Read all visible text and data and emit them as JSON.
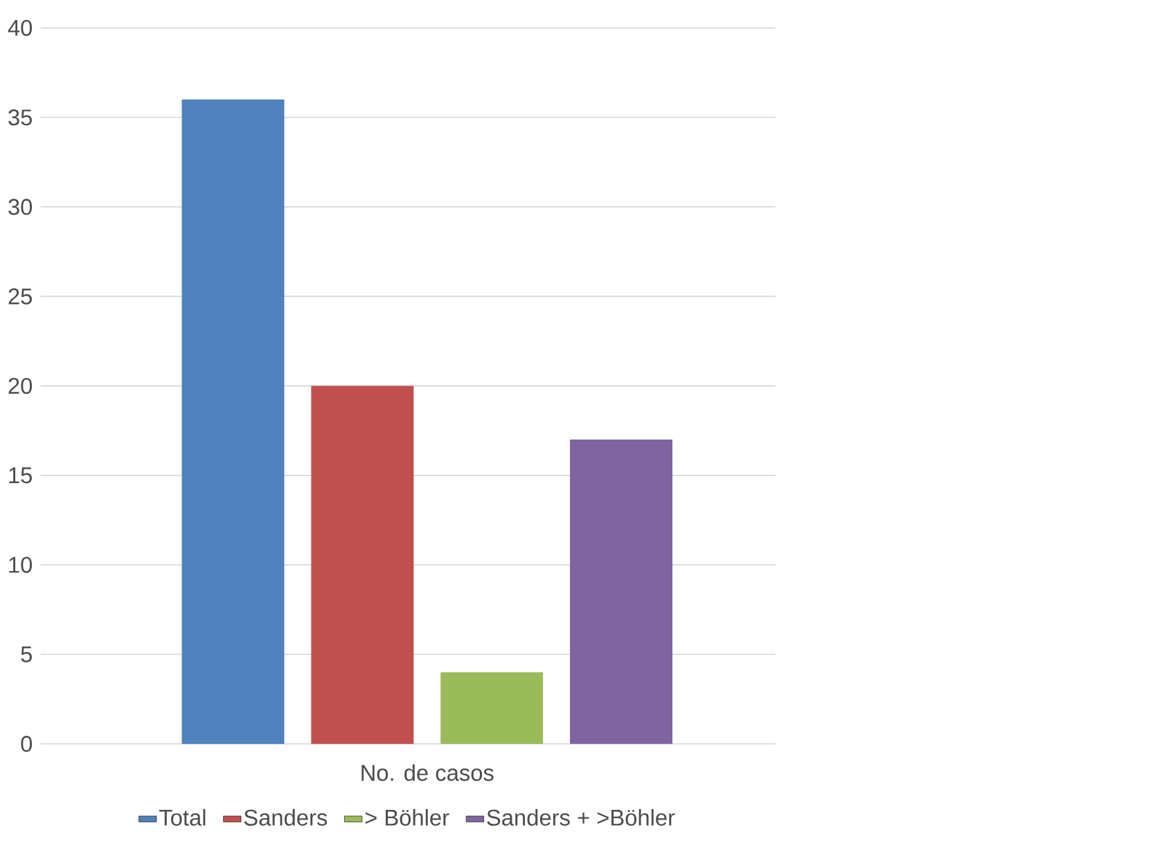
{
  "chart_data": {
    "type": "bar",
    "categories": [
      "No. de casos"
    ],
    "series": [
      {
        "name": "Total",
        "color": "#4f81bd",
        "values": [
          36
        ]
      },
      {
        "name": "Sanders",
        "color": "#c0504d",
        "values": [
          20
        ]
      },
      {
        "name": "> Böhler",
        "color": "#9bbb59",
        "values": [
          4
        ]
      },
      {
        "name": "Sanders + >Böhler",
        "color": "#8064a2",
        "values": [
          17
        ]
      }
    ],
    "ylim": [
      0,
      40
    ],
    "yticks": [
      0,
      5,
      10,
      15,
      20,
      25,
      30,
      35,
      40
    ],
    "grid": "y",
    "legend": "bottom"
  }
}
